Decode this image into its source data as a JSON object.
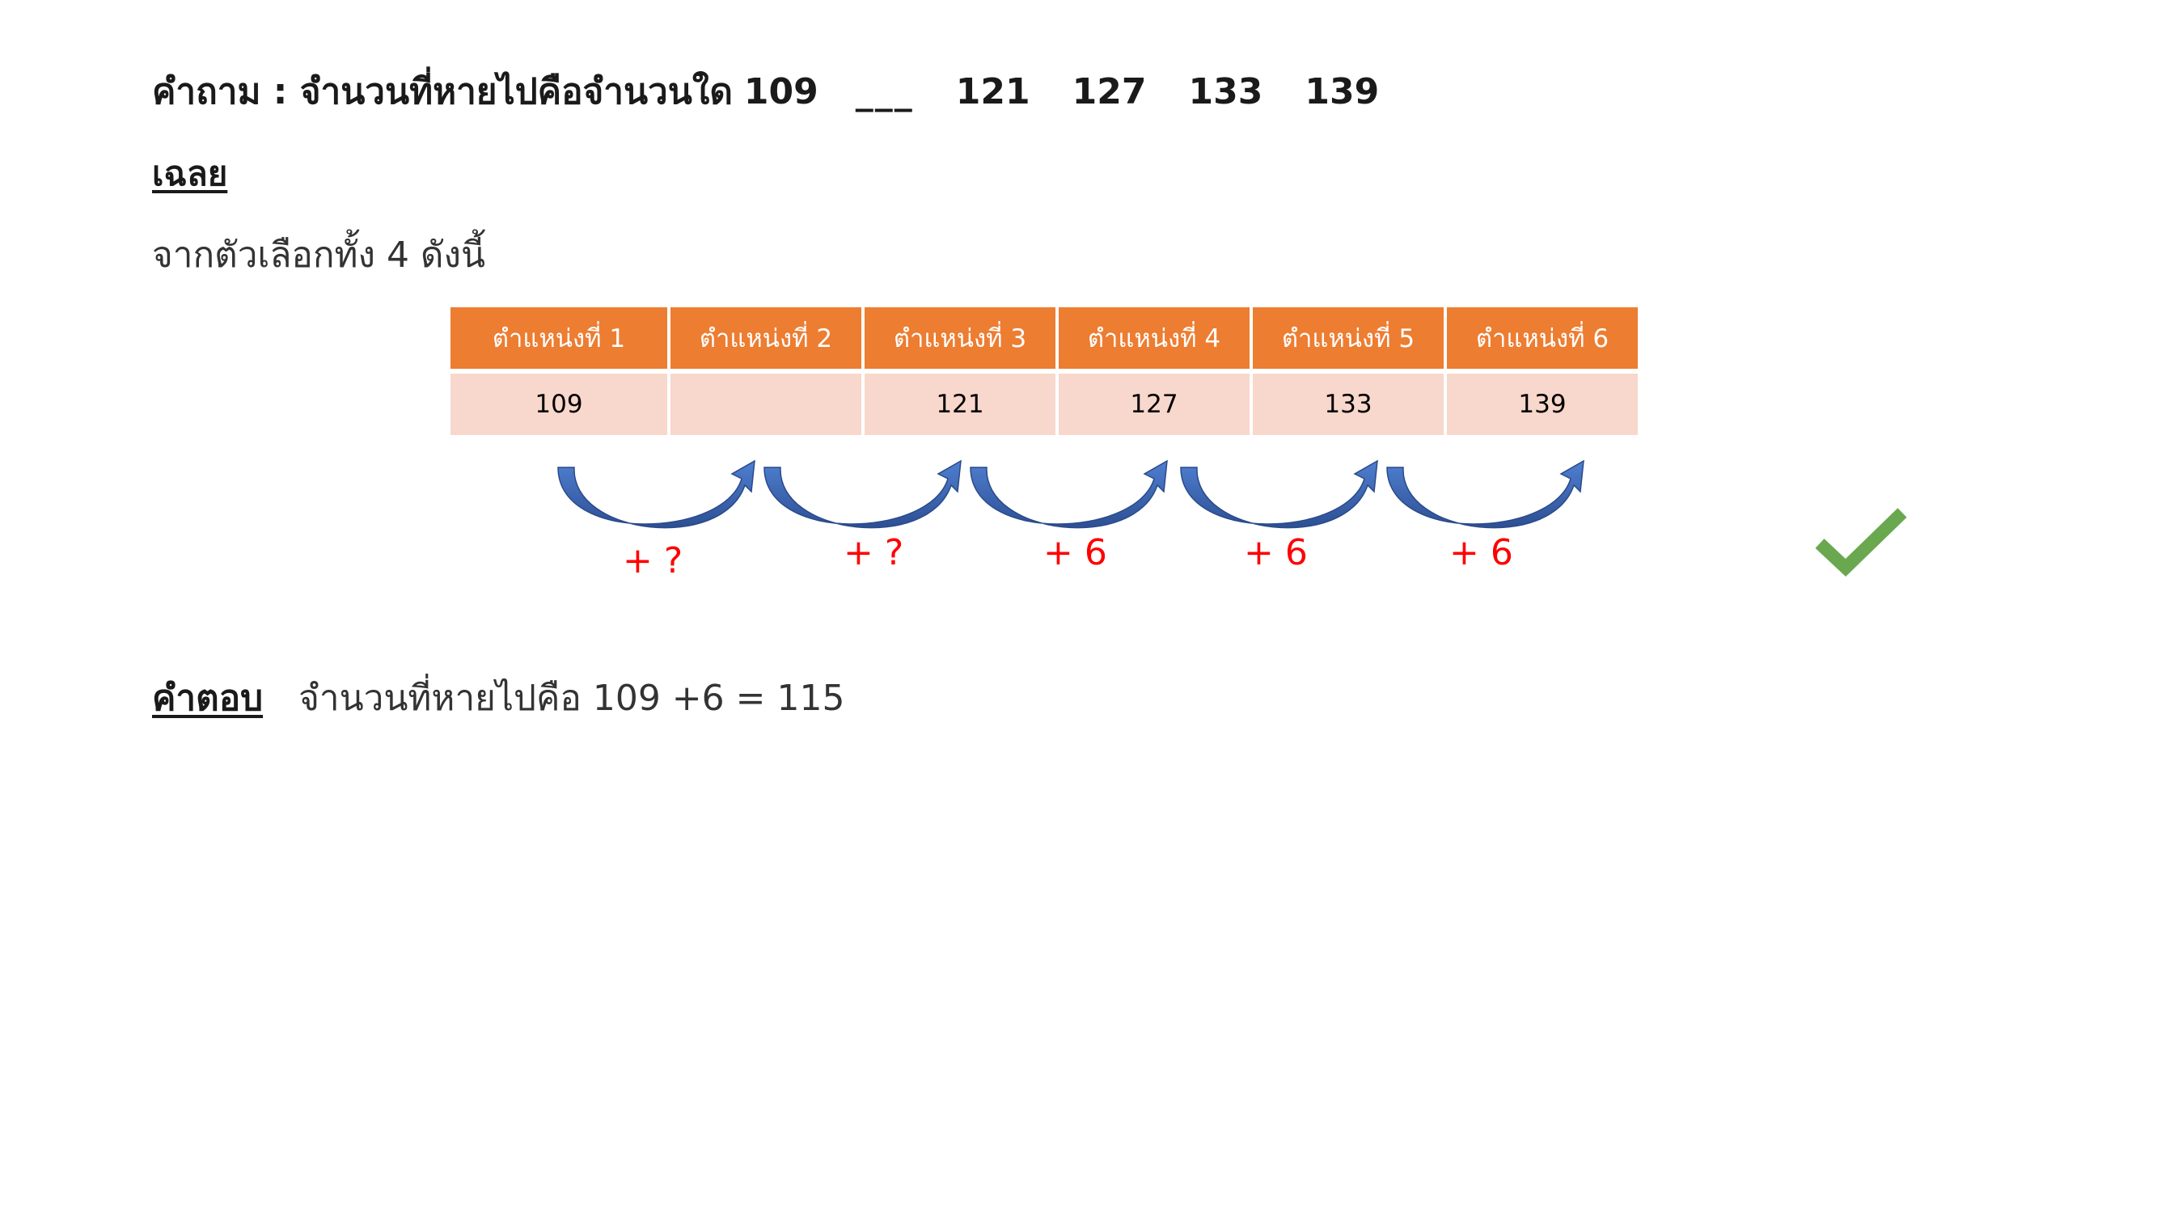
{
  "question": {
    "prefix": "คำถาม : จำนวนที่หายไปคือจำนวนใด",
    "sequence": [
      "109",
      "121",
      "127",
      "133",
      "139"
    ],
    "blank": "___"
  },
  "solution_heading": "เฉลย",
  "intro_text": "จากตัวเลือกทั้ง 4 ดังนี้",
  "table": {
    "headers": [
      "ตำแหน่งที่ 1",
      "ตำแหน่งที่ 2",
      "ตำแหน่งที่ 3",
      "ตำแหน่งที่ 4",
      "ตำแหน่งที่ 5",
      "ตำแหน่งที่ 6"
    ],
    "values": [
      "109",
      "",
      "121",
      "127",
      "133",
      "139"
    ]
  },
  "steps": [
    "+ ?",
    "+ ?",
    "+ 6",
    "+ 6",
    "+ 6"
  ],
  "answer": {
    "label": "คำตอบ",
    "text": "จำนวนที่หายไปคือ 109 +6 = 115"
  },
  "colors": {
    "header_bg": "#ed7d31",
    "cell_bg": "#f8d7cc",
    "arrow": "#3a62ad",
    "step_text": "#ff0000",
    "check": "#6aa84f"
  },
  "icons": {
    "arrow": "curved-arrow-icon",
    "check": "checkmark-icon"
  }
}
